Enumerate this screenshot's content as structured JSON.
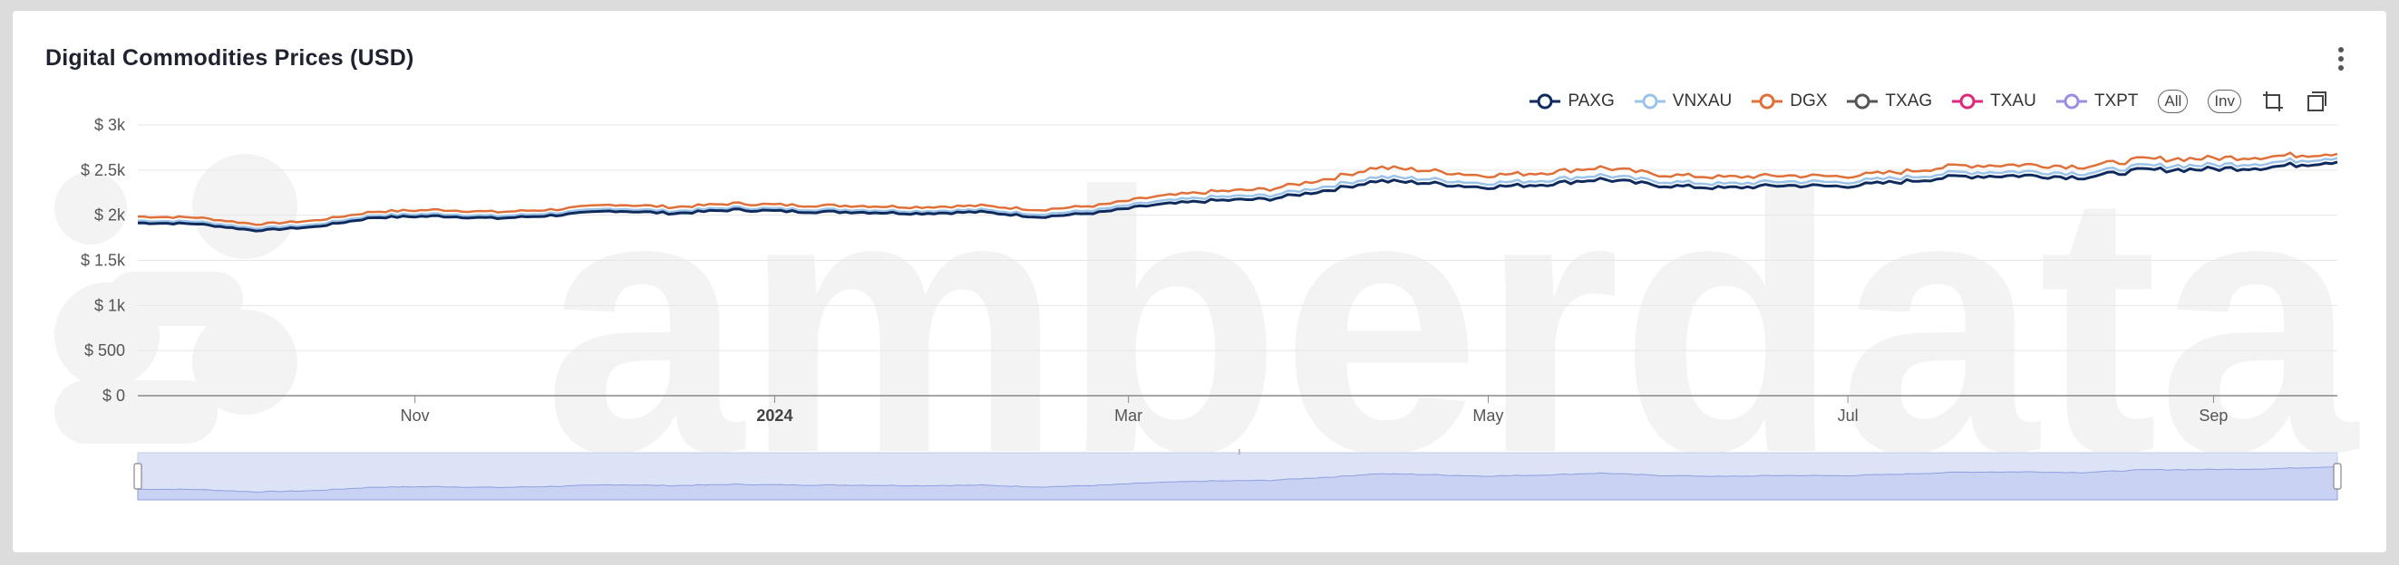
{
  "header": {
    "title": "Digital Commodities Prices (USD)",
    "menu_icon": "kebab-vertical-icon"
  },
  "legend": {
    "items": [
      {
        "label": "PAXG",
        "color": "#0f2a5c"
      },
      {
        "label": "VNXAU",
        "color": "#9cc3e8"
      },
      {
        "label": "DGX",
        "color": "#e0703a"
      },
      {
        "label": "TXAG",
        "color": "#555555"
      },
      {
        "label": "TXAU",
        "color": "#e0287a"
      },
      {
        "label": "TXPT",
        "color": "#9a8fe0"
      }
    ],
    "buttons": {
      "all": "All",
      "inv": "Inv"
    },
    "tools": [
      "crop-icon",
      "reset-zoom-icon"
    ]
  },
  "watermark": "amberdata",
  "chart_data": {
    "type": "line",
    "title": "Digital Commodities Prices (USD)",
    "xlabel": "",
    "ylabel": "",
    "ylim": [
      0,
      3000
    ],
    "yticks": [
      {
        "value": 0,
        "label": "$ 0"
      },
      {
        "value": 500,
        "label": "$ 500"
      },
      {
        "value": 1000,
        "label": "$ 1k"
      },
      {
        "value": 1500,
        "label": "$ 1.5k"
      },
      {
        "value": 2000,
        "label": "$ 2k"
      },
      {
        "value": 2500,
        "label": "$ 2.5k"
      },
      {
        "value": 3000,
        "label": "$ 3k"
      }
    ],
    "xrange": [
      "2023-09-15",
      "2024-09-22"
    ],
    "xticks": [
      {
        "date": "2023-11-01",
        "label": "Nov",
        "bold": false
      },
      {
        "date": "2024-01-01",
        "label": "2024",
        "bold": true
      },
      {
        "date": "2024-03-01",
        "label": "Mar",
        "bold": false
      },
      {
        "date": "2024-05-01",
        "label": "May",
        "bold": false
      },
      {
        "date": "2024-07-01",
        "label": "Jul",
        "bold": false
      },
      {
        "date": "2024-09-01",
        "label": "Sep",
        "bold": false
      }
    ],
    "grid": true,
    "legend_position": "top-right",
    "series": [
      {
        "name": "PAXG",
        "color": "#0f2a5c",
        "points": [
          [
            "2023-09-15",
            1915
          ],
          [
            "2023-09-25",
            1905
          ],
          [
            "2023-10-05",
            1830
          ],
          [
            "2023-10-15",
            1870
          ],
          [
            "2023-10-25",
            1975
          ],
          [
            "2023-11-05",
            1990
          ],
          [
            "2023-11-15",
            1965
          ],
          [
            "2023-11-25",
            2000
          ],
          [
            "2023-12-05",
            2050
          ],
          [
            "2023-12-15",
            2020
          ],
          [
            "2023-12-25",
            2060
          ],
          [
            "2024-01-05",
            2040
          ],
          [
            "2024-01-15",
            2035
          ],
          [
            "2024-01-25",
            2020
          ],
          [
            "2024-02-05",
            2035
          ],
          [
            "2024-02-15",
            1980
          ],
          [
            "2024-02-25",
            2030
          ],
          [
            "2024-03-05",
            2110
          ],
          [
            "2024-03-15",
            2160
          ],
          [
            "2024-03-25",
            2180
          ],
          [
            "2024-04-05",
            2290
          ],
          [
            "2024-04-12",
            2380
          ],
          [
            "2024-04-20",
            2360
          ],
          [
            "2024-04-30",
            2310
          ],
          [
            "2024-05-10",
            2340
          ],
          [
            "2024-05-20",
            2400
          ],
          [
            "2024-05-30",
            2330
          ],
          [
            "2024-06-10",
            2300
          ],
          [
            "2024-06-20",
            2330
          ],
          [
            "2024-06-30",
            2320
          ],
          [
            "2024-07-10",
            2370
          ],
          [
            "2024-07-20",
            2430
          ],
          [
            "2024-07-31",
            2440
          ],
          [
            "2024-08-10",
            2420
          ],
          [
            "2024-08-20",
            2500
          ],
          [
            "2024-08-31",
            2510
          ],
          [
            "2024-09-10",
            2530
          ],
          [
            "2024-09-22",
            2600
          ]
        ]
      },
      {
        "name": "VNXAU",
        "color": "#9cc3e8",
        "points": [
          [
            "2023-09-15",
            1940
          ],
          [
            "2023-09-25",
            1930
          ],
          [
            "2023-10-05",
            1855
          ],
          [
            "2023-10-15",
            1895
          ],
          [
            "2023-10-25",
            2000
          ],
          [
            "2023-11-05",
            2015
          ],
          [
            "2023-11-15",
            1990
          ],
          [
            "2023-11-25",
            2025
          ],
          [
            "2023-12-05",
            2075
          ],
          [
            "2023-12-15",
            2045
          ],
          [
            "2023-12-25",
            2085
          ],
          [
            "2024-01-05",
            2065
          ],
          [
            "2024-01-15",
            2060
          ],
          [
            "2024-01-25",
            2045
          ],
          [
            "2024-02-05",
            2060
          ],
          [
            "2024-02-15",
            2010
          ],
          [
            "2024-02-25",
            2060
          ],
          [
            "2024-03-05",
            2145
          ],
          [
            "2024-03-15",
            2200
          ],
          [
            "2024-03-25",
            2220
          ],
          [
            "2024-04-05",
            2335
          ],
          [
            "2024-04-12",
            2425
          ],
          [
            "2024-04-20",
            2405
          ],
          [
            "2024-04-30",
            2355
          ],
          [
            "2024-05-10",
            2385
          ],
          [
            "2024-05-20",
            2445
          ],
          [
            "2024-05-30",
            2375
          ],
          [
            "2024-06-10",
            2345
          ],
          [
            "2024-06-20",
            2375
          ],
          [
            "2024-06-30",
            2365
          ],
          [
            "2024-07-10",
            2415
          ],
          [
            "2024-07-20",
            2475
          ],
          [
            "2024-07-31",
            2485
          ],
          [
            "2024-08-10",
            2465
          ],
          [
            "2024-08-20",
            2545
          ],
          [
            "2024-08-31",
            2555
          ],
          [
            "2024-09-10",
            2580
          ],
          [
            "2024-09-22",
            2645
          ]
        ]
      },
      {
        "name": "DGX",
        "color": "#e0703a",
        "points": [
          [
            "2023-09-15",
            1985
          ],
          [
            "2023-09-25",
            1975
          ],
          [
            "2023-10-05",
            1900
          ],
          [
            "2023-10-15",
            1940
          ],
          [
            "2023-10-25",
            2040
          ],
          [
            "2023-11-05",
            2060
          ],
          [
            "2023-11-15",
            2035
          ],
          [
            "2023-11-25",
            2065
          ],
          [
            "2023-12-05",
            2120
          ],
          [
            "2023-12-15",
            2090
          ],
          [
            "2023-12-25",
            2130
          ],
          [
            "2024-01-05",
            2110
          ],
          [
            "2024-01-15",
            2105
          ],
          [
            "2024-01-25",
            2090
          ],
          [
            "2024-02-05",
            2105
          ],
          [
            "2024-02-15",
            2060
          ],
          [
            "2024-02-25",
            2110
          ],
          [
            "2024-03-05",
            2200
          ],
          [
            "2024-03-15",
            2260
          ],
          [
            "2024-03-25",
            2290
          ],
          [
            "2024-04-05",
            2420
          ],
          [
            "2024-04-12",
            2530
          ],
          [
            "2024-04-20",
            2500
          ],
          [
            "2024-04-30",
            2440
          ],
          [
            "2024-05-10",
            2470
          ],
          [
            "2024-05-20",
            2530
          ],
          [
            "2024-05-30",
            2450
          ],
          [
            "2024-06-10",
            2420
          ],
          [
            "2024-06-20",
            2440
          ],
          [
            "2024-06-30",
            2430
          ],
          [
            "2024-07-10",
            2480
          ],
          [
            "2024-07-20",
            2550
          ],
          [
            "2024-07-31",
            2560
          ],
          [
            "2024-08-10",
            2540
          ],
          [
            "2024-08-20",
            2620
          ],
          [
            "2024-08-31",
            2630
          ],
          [
            "2024-09-10",
            2650
          ],
          [
            "2024-09-22",
            2690
          ]
        ]
      }
    ]
  }
}
